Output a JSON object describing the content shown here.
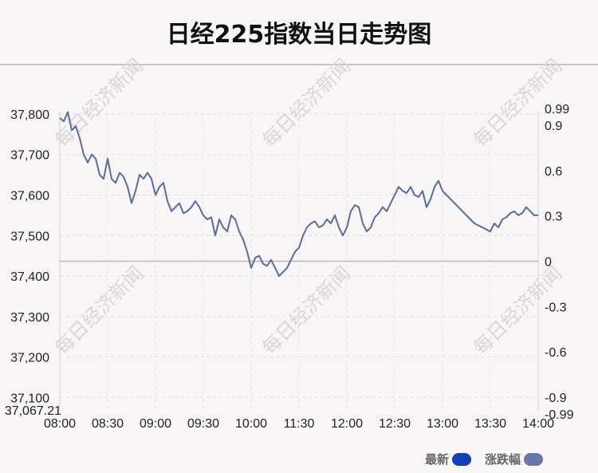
{
  "title": "日经225指数当日走势图",
  "watermark_text": "每日经济新闻",
  "legend": [
    {
      "label": "最新",
      "color": "#1440b5"
    },
    {
      "label": "涨跌幅",
      "color": "#6677a8"
    }
  ],
  "chart_data": {
    "type": "line",
    "title": "日经225指数当日走势图",
    "x_ticks": [
      "08:00",
      "08:30",
      "09:00",
      "09:30",
      "10:00",
      "11:30",
      "12:00",
      "12:30",
      "13:00",
      "13:30",
      "14:00"
    ],
    "y_left_ticks": [
      "37,800",
      "37,700",
      "37,600",
      "37,500",
      "37,400",
      "37,300",
      "37,200",
      "37,100"
    ],
    "y_left_tick_values": [
      37800,
      37700,
      37600,
      37500,
      37400,
      37300,
      37200,
      37100
    ],
    "y_left_min_label": "37,067.21",
    "y_left_range": [
      37067.21,
      37805.82
    ],
    "y_right_ticks": [
      "0.99",
      "0.9",
      "0.6",
      "0.3",
      "0",
      "-0.3",
      "-0.6",
      "-0.9",
      "-0.99"
    ],
    "y_right_tick_values": [
      0.99,
      0.9,
      0.6,
      0.3,
      0,
      -0.3,
      -0.6,
      -0.9,
      -0.99
    ],
    "y_right_range": [
      -0.99,
      0.99
    ],
    "baseline_value": 37436.5,
    "grid": true,
    "line_color": "#5b6b9c",
    "series": [
      {
        "values": [
          37790,
          37782,
          37805,
          37760,
          37770,
          37740,
          37700,
          37680,
          37700,
          37690,
          37650,
          37640,
          37690,
          37640,
          37630,
          37655,
          37645,
          37620,
          37580,
          37610,
          37650,
          37640,
          37655,
          37640,
          37600,
          37620,
          37630,
          37585,
          37560,
          37570,
          37580,
          37555,
          37560,
          37570,
          37585,
          37570,
          37550,
          37540,
          37545,
          37500,
          37540,
          37520,
          37510,
          37550,
          37540,
          37510,
          37490,
          37460,
          37420,
          37445,
          37450,
          37430,
          37425,
          37440,
          37420,
          37400,
          37410,
          37420,
          37440,
          37460,
          37470,
          37500,
          37520,
          37530,
          37535,
          37520,
          37525,
          37540,
          37530,
          37550,
          37520,
          37500,
          37520,
          37560,
          37575,
          37570,
          37530,
          37510,
          37520,
          37545,
          37555,
          37570,
          37560,
          37580,
          37600,
          37620,
          37610,
          37605,
          37620,
          37600,
          37595,
          37610,
          37570,
          37590,
          37620,
          37635,
          37610,
          37600,
          37590,
          37580,
          37570,
          37560,
          37550,
          37540,
          37530,
          37525,
          37520,
          37515,
          37510,
          37530,
          37520,
          37540,
          37545,
          37555,
          37560,
          37550,
          37555,
          37570,
          37560,
          37550,
          37550
        ]
      }
    ]
  }
}
